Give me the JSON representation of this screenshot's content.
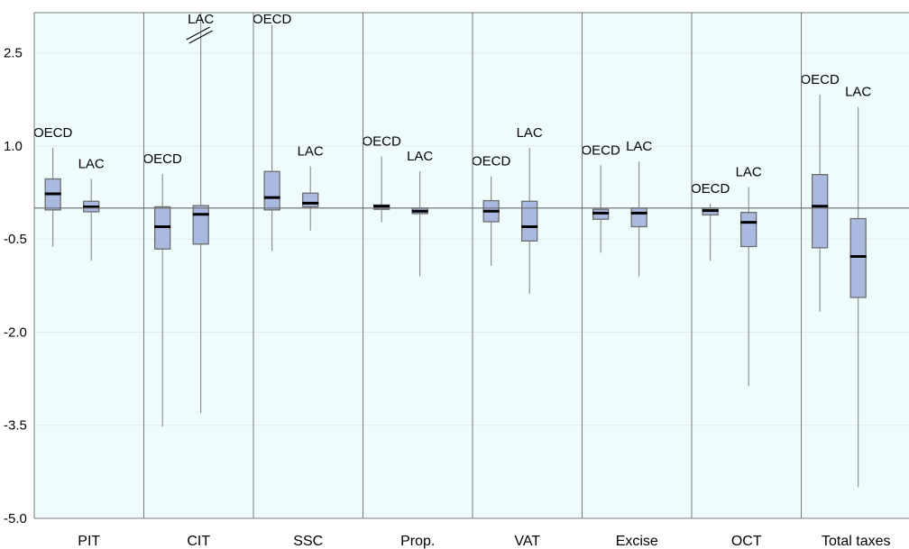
{
  "chart_data": {
    "type": "box",
    "categories": [
      "PIT",
      "CIT",
      "SSC",
      "Prop.",
      "VAT",
      "Excise",
      "OCT",
      "Total taxes"
    ],
    "y_ticks": [
      "2.5",
      "1.0",
      "-0.5",
      "-2.0",
      "-3.5",
      "-5.0"
    ],
    "y_tick_values": [
      2.5,
      1.0,
      -0.5,
      -2.0,
      -3.5,
      -5.0
    ],
    "ylim": [
      -5.0,
      3.15
    ],
    "zero_line": 0.0,
    "grid": true,
    "panel_color": "#eefcfc",
    "box_color": "#a9b9e0",
    "box_edge_color": "#6d6d6d",
    "median_color": "#000000",
    "series_names": [
      "OECD",
      "LAC"
    ],
    "groups": [
      {
        "category": "PIT",
        "boxes": [
          {
            "series": "OECD",
            "label": "OECD",
            "min": -0.62,
            "q1": -0.03,
            "median": 0.23,
            "q3": 0.47,
            "max": 0.97
          },
          {
            "series": "LAC",
            "label": "LAC",
            "min": -0.85,
            "q1": -0.06,
            "median": 0.02,
            "q3": 0.11,
            "max": 0.47
          }
        ]
      },
      {
        "category": "CIT",
        "boxes": [
          {
            "series": "OECD",
            "label": "OECD",
            "min": -3.52,
            "q1": -0.66,
            "median": -0.3,
            "q3": 0.02,
            "max": 0.55
          },
          {
            "series": "LAC",
            "label": "LAC",
            "min": -3.3,
            "q1": -0.58,
            "median": -0.1,
            "q3": 0.04,
            "max": 3.1,
            "broken_axis": true
          }
        ]
      },
      {
        "category": "SSC",
        "boxes": [
          {
            "series": "OECD",
            "label": "OECD",
            "min": -0.69,
            "q1": -0.03,
            "median": 0.17,
            "q3": 0.59,
            "max": 2.95
          },
          {
            "series": "LAC",
            "label": "LAC",
            "min": -0.36,
            "q1": 0.02,
            "median": 0.08,
            "q3": 0.24,
            "max": 0.67
          }
        ]
      },
      {
        "category": "Prop.",
        "boxes": [
          {
            "series": "OECD",
            "label": "OECD",
            "min": -0.23,
            "q1": -0.02,
            "median": 0.03,
            "q3": 0.05,
            "max": 0.83
          },
          {
            "series": "LAC",
            "label": "LAC",
            "min": -1.1,
            "q1": -0.09,
            "median": -0.05,
            "q3": 0.0,
            "max": 0.59
          }
        ]
      },
      {
        "category": "VAT",
        "boxes": [
          {
            "series": "OECD",
            "label": "OECD",
            "min": -0.93,
            "q1": -0.22,
            "median": -0.05,
            "q3": 0.12,
            "max": 0.51
          },
          {
            "series": "LAC",
            "label": "LAC",
            "min": -1.38,
            "q1": -0.53,
            "median": -0.3,
            "q3": 0.11,
            "max": 0.97
          }
        ]
      },
      {
        "category": "Excise",
        "boxes": [
          {
            "series": "OECD",
            "label": "OECD",
            "min": -0.72,
            "q1": -0.18,
            "median": -0.08,
            "q3": -0.02,
            "max": 0.69
          },
          {
            "series": "LAC",
            "label": "LAC",
            "min": -1.1,
            "q1": -0.3,
            "median": -0.08,
            "q3": 0.0,
            "max": 0.75
          }
        ]
      },
      {
        "category": "OCT",
        "boxes": [
          {
            "series": "OECD",
            "label": "OECD",
            "min": -0.85,
            "q1": -0.11,
            "median": -0.04,
            "q3": 0.0,
            "max": 0.07
          },
          {
            "series": "LAC",
            "label": "LAC",
            "min": -2.87,
            "q1": -0.62,
            "median": -0.23,
            "q3": -0.07,
            "max": 0.34
          }
        ]
      },
      {
        "category": "Total taxes",
        "boxes": [
          {
            "series": "OECD",
            "label": "OECD",
            "min": -1.67,
            "q1": -0.64,
            "median": 0.03,
            "q3": 0.54,
            "max": 1.83
          },
          {
            "series": "LAC",
            "label": "LAC",
            "min": -4.5,
            "q1": -1.44,
            "median": -0.78,
            "q3": -0.17,
            "max": 1.63
          }
        ]
      }
    ]
  }
}
